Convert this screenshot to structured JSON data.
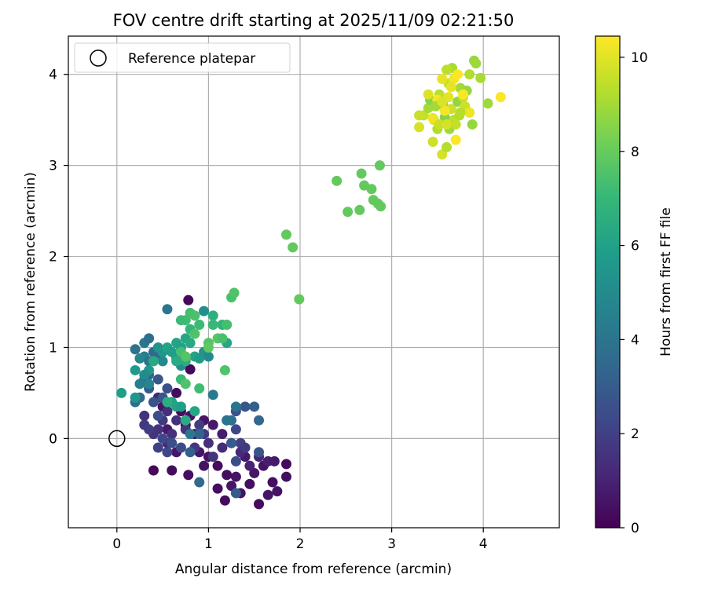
{
  "chart_data": {
    "type": "scatter",
    "title": "FOV centre drift starting at 2025/11/09 02:21:50",
    "xlabel": "Angular distance from reference (arcmin)",
    "ylabel": "Rotation from reference (arcmin)",
    "xlim": [
      -0.53,
      4.83
    ],
    "ylim": [
      -0.98,
      4.42
    ],
    "xticks": [
      0,
      1,
      2,
      3,
      4
    ],
    "yticks": [
      0,
      1,
      2,
      3,
      4
    ],
    "grid": true,
    "legend": {
      "position": "top-left",
      "entries": [
        {
          "label": "Reference platepar",
          "marker": "open-circle"
        }
      ]
    },
    "reference_point": {
      "x": 0,
      "y": 0
    },
    "colorbar": {
      "label": "Hours from first FF file",
      "range": [
        0,
        10.45
      ],
      "ticks": [
        0,
        2,
        4,
        6,
        8,
        10
      ],
      "colormap": "viridis"
    },
    "colors": {
      "viridis": [
        "#440154",
        "#482878",
        "#3e4989",
        "#31688e",
        "#26828e",
        "#1f9e89",
        "#35b779",
        "#6ece58",
        "#b5de2b",
        "#fde725"
      ]
    },
    "points": [
      [
        0.4,
        -0.35,
        0.2
      ],
      [
        0.6,
        -0.35,
        0.3
      ],
      [
        0.78,
        -0.4,
        0.4
      ],
      [
        0.95,
        -0.3,
        0.5
      ],
      [
        1.1,
        -0.55,
        0.4
      ],
      [
        1.18,
        -0.68,
        0.3
      ],
      [
        1.25,
        -0.52,
        0.6
      ],
      [
        1.35,
        -0.6,
        0.5
      ],
      [
        1.45,
        -0.5,
        0.4
      ],
      [
        1.55,
        -0.72,
        0.3
      ],
      [
        1.65,
        -0.62,
        0.6
      ],
      [
        1.75,
        -0.58,
        0.5
      ],
      [
        1.85,
        -0.42,
        0.4
      ],
      [
        1.85,
        -0.28,
        0.3
      ],
      [
        1.7,
        -0.48,
        0.4
      ],
      [
        1.6,
        -0.3,
        0.5
      ],
      [
        1.5,
        -0.38,
        0.6
      ],
      [
        1.4,
        -0.2,
        0.7
      ],
      [
        1.3,
        -0.42,
        0.5
      ],
      [
        1.2,
        -0.4,
        0.4
      ],
      [
        1.1,
        -0.3,
        0.3
      ],
      [
        1.0,
        -0.2,
        0.5
      ],
      [
        0.9,
        -0.15,
        0.6
      ],
      [
        0.85,
        0.05,
        0.5
      ],
      [
        0.75,
        0.15,
        0.3
      ],
      [
        0.65,
        -0.15,
        0.6
      ],
      [
        0.55,
        0.1,
        0.7
      ],
      [
        0.7,
        0.3,
        0.4
      ],
      [
        0.8,
        0.25,
        0.5
      ],
      [
        0.95,
        0.2,
        0.6
      ],
      [
        1.05,
        0.15,
        0.7
      ],
      [
        1.15,
        0.05,
        0.8
      ],
      [
        1.25,
        -0.05,
        1.0
      ],
      [
        1.35,
        -0.15,
        1.2
      ],
      [
        1.45,
        -0.3,
        1.0
      ],
      [
        1.65,
        -0.25,
        0.9
      ],
      [
        1.72,
        -0.25,
        0.7
      ],
      [
        1.55,
        -0.2,
        1.1
      ],
      [
        1.15,
        -0.1,
        1.3
      ],
      [
        1.0,
        -0.05,
        1.4
      ],
      [
        0.78,
        1.52,
        0.2
      ],
      [
        0.8,
        0.76,
        0.2
      ],
      [
        0.65,
        0.5,
        0.3
      ],
      [
        0.5,
        0.35,
        0.6
      ],
      [
        0.45,
        0.45,
        1.0
      ],
      [
        0.55,
        -0.05,
        1.2
      ],
      [
        0.6,
        0.05,
        1.4
      ],
      [
        0.65,
        0.2,
        1.5
      ],
      [
        0.75,
        0.1,
        1.6
      ],
      [
        0.85,
        -0.1,
        1.7
      ],
      [
        0.95,
        0.05,
        1.8
      ],
      [
        1.05,
        -0.2,
        1.6
      ],
      [
        0.9,
        0.15,
        1.9
      ],
      [
        0.45,
        0.1,
        1.5
      ],
      [
        0.4,
        0.05,
        1.6
      ],
      [
        0.5,
        0.2,
        1.7
      ],
      [
        0.55,
        0.3,
        1.4
      ],
      [
        0.3,
        0.15,
        1.8
      ],
      [
        0.35,
        0.1,
        1.9
      ],
      [
        0.3,
        0.25,
        1.5
      ],
      [
        0.45,
        -0.1,
        2.0
      ],
      [
        0.55,
        -0.15,
        2.2
      ],
      [
        0.7,
        -0.1,
        2.4
      ],
      [
        0.6,
        -0.05,
        2.6
      ],
      [
        0.5,
        0.0,
        2.3
      ],
      [
        0.45,
        0.25,
        2.5
      ],
      [
        0.4,
        0.4,
        2.7
      ],
      [
        0.5,
        0.45,
        2.9
      ],
      [
        0.55,
        0.55,
        2.6
      ],
      [
        0.35,
        0.55,
        3.0
      ],
      [
        0.3,
        0.65,
        3.2
      ],
      [
        0.35,
        0.7,
        3.4
      ],
      [
        0.45,
        0.65,
        2.8
      ],
      [
        0.25,
        0.45,
        3.6
      ],
      [
        0.2,
        0.4,
        3.8
      ],
      [
        1.2,
        0.2,
        2.4
      ],
      [
        1.3,
        0.3,
        2.6
      ],
      [
        1.4,
        0.35,
        2.8
      ],
      [
        1.3,
        0.1,
        2.2
      ],
      [
        1.35,
        -0.05,
        2.0
      ],
      [
        1.4,
        -0.1,
        1.8
      ],
      [
        1.3,
        -0.25,
        2.5
      ],
      [
        1.3,
        -0.6,
        3.0
      ],
      [
        1.55,
        -0.15,
        2.7
      ],
      [
        0.9,
        0.05,
        3.3
      ],
      [
        0.8,
        -0.15,
        3.1
      ],
      [
        0.9,
        -0.48,
        3.6
      ],
      [
        1.25,
        -0.05,
        3.0
      ],
      [
        1.5,
        0.35,
        3.2
      ],
      [
        1.55,
        0.2,
        3.5
      ],
      [
        1.25,
        0.2,
        3.8
      ],
      [
        1.2,
        0.2,
        4.0
      ],
      [
        1.3,
        0.35,
        4.0
      ],
      [
        1.05,
        0.48,
        4.3
      ],
      [
        0.8,
        0.05,
        4.2
      ],
      [
        0.2,
        0.98,
        4.0
      ],
      [
        0.3,
        1.05,
        4.2
      ],
      [
        0.35,
        1.1,
        3.8
      ],
      [
        0.4,
        0.95,
        3.6
      ],
      [
        0.3,
        0.9,
        4.5
      ],
      [
        0.25,
        0.88,
        4.8
      ],
      [
        0.35,
        0.85,
        4.0
      ],
      [
        0.45,
        0.9,
        3.5
      ],
      [
        0.55,
        1.42,
        4.1
      ],
      [
        0.65,
        0.88,
        5.0
      ],
      [
        0.7,
        0.8,
        5.2
      ],
      [
        0.5,
        0.85,
        4.9
      ],
      [
        0.45,
        1.0,
        5.4
      ],
      [
        0.35,
        0.75,
        5.6
      ],
      [
        0.3,
        0.7,
        5.0
      ],
      [
        0.35,
        0.6,
        4.8
      ],
      [
        0.25,
        0.6,
        4.5
      ],
      [
        0.2,
        0.45,
        5.5
      ],
      [
        0.05,
        0.5,
        5.8
      ],
      [
        0.2,
        0.75,
        5.7
      ],
      [
        0.65,
        0.35,
        5.9
      ],
      [
        0.6,
        0.4,
        6.0
      ],
      [
        0.7,
        0.35,
        5.8
      ],
      [
        0.85,
        0.3,
        6.2
      ],
      [
        0.75,
        0.2,
        6.4
      ],
      [
        0.55,
        0.4,
        6.5
      ],
      [
        0.4,
        0.85,
        6.3
      ],
      [
        0.5,
        0.95,
        5.5
      ],
      [
        0.55,
        1.0,
        6.0
      ],
      [
        0.6,
        0.95,
        5.8
      ],
      [
        0.65,
        1.05,
        6.1
      ],
      [
        0.75,
        1.1,
        6.2
      ],
      [
        0.8,
        1.05,
        6.3
      ],
      [
        0.7,
        1.0,
        6.0
      ],
      [
        0.65,
        0.85,
        6.4
      ],
      [
        0.75,
        0.85,
        6.5
      ],
      [
        0.85,
        0.9,
        6.1
      ],
      [
        0.9,
        0.88,
        5.7
      ],
      [
        0.95,
        0.95,
        5.4
      ],
      [
        1.0,
        0.9,
        5.0
      ],
      [
        0.95,
        1.4,
        5.2
      ],
      [
        1.05,
        1.35,
        6.6
      ],
      [
        1.15,
        1.25,
        6.8
      ],
      [
        1.2,
        1.05,
        6.2
      ],
      [
        1.05,
        1.25,
        7.0
      ],
      [
        0.9,
        1.25,
        7.1
      ],
      [
        0.8,
        1.2,
        6.9
      ],
      [
        0.75,
        1.3,
        7.2
      ],
      [
        0.8,
        1.38,
        7.3
      ],
      [
        0.85,
        1.35,
        7.4
      ],
      [
        0.85,
        1.15,
        7.5
      ],
      [
        1.0,
        1.05,
        7.6
      ],
      [
        1.1,
        1.1,
        7.7
      ],
      [
        1.2,
        1.25,
        7.3
      ],
      [
        1.25,
        1.55,
        7.4
      ],
      [
        1.28,
        1.6,
        7.5
      ],
      [
        1.18,
        0.75,
        7.5
      ],
      [
        1.15,
        1.1,
        7.4
      ],
      [
        0.9,
        0.55,
        7.2
      ],
      [
        0.7,
        0.65,
        7.0
      ],
      [
        0.7,
        0.95,
        7.3
      ],
      [
        0.75,
        0.9,
        7.6
      ],
      [
        1.0,
        1.0,
        7.8
      ],
      [
        0.75,
        0.6,
        7.5
      ],
      [
        0.7,
        1.3,
        7.1
      ],
      [
        1.85,
        2.24,
        7.9
      ],
      [
        1.92,
        2.1,
        7.9
      ],
      [
        1.99,
        1.53,
        7.9
      ],
      [
        2.4,
        2.83,
        7.9
      ],
      [
        2.52,
        2.49,
        7.9
      ],
      [
        2.65,
        2.51,
        7.9
      ],
      [
        2.67,
        2.91,
        7.9
      ],
      [
        2.7,
        2.78,
        7.9
      ],
      [
        2.78,
        2.74,
        7.9
      ],
      [
        2.8,
        2.62,
        7.9
      ],
      [
        2.85,
        2.58,
        7.9
      ],
      [
        2.88,
        2.55,
        7.9
      ],
      [
        2.87,
        3.0,
        7.9
      ],
      [
        3.3,
        3.42,
        9.8
      ],
      [
        3.35,
        3.55,
        9.5
      ],
      [
        3.4,
        3.63,
        9.0
      ],
      [
        3.42,
        3.72,
        8.5
      ],
      [
        3.45,
        3.26,
        9.7
      ],
      [
        3.5,
        3.4,
        9.2
      ],
      [
        3.52,
        3.78,
        9.4
      ],
      [
        3.55,
        3.12,
        9.8
      ],
      [
        3.56,
        3.67,
        8.8
      ],
      [
        3.58,
        3.53,
        8.5
      ],
      [
        3.6,
        3.2,
        9.3
      ],
      [
        3.62,
        3.9,
        9.6
      ],
      [
        3.63,
        3.4,
        8.9
      ],
      [
        3.65,
        3.62,
        9.7
      ],
      [
        3.66,
        4.07,
        9.1
      ],
      [
        3.68,
        3.5,
        9.4
      ],
      [
        3.7,
        3.28,
        10.4
      ],
      [
        3.72,
        3.7,
        8.7
      ],
      [
        3.74,
        3.55,
        9.2
      ],
      [
        3.75,
        3.85,
        9.0
      ],
      [
        3.78,
        3.75,
        9.5
      ],
      [
        3.8,
        3.65,
        9.7
      ],
      [
        3.82,
        3.82,
        8.8
      ],
      [
        3.85,
        3.58,
        10.2
      ],
      [
        3.88,
        3.45,
        8.8
      ],
      [
        3.9,
        4.15,
        8.8
      ],
      [
        3.92,
        4.12,
        8.9
      ],
      [
        3.97,
        3.96,
        9.1
      ],
      [
        4.05,
        3.68,
        8.9
      ],
      [
        4.19,
        3.75,
        10.4
      ],
      [
        3.46,
        3.5,
        9.9
      ],
      [
        3.55,
        3.95,
        10.1
      ],
      [
        3.62,
        3.75,
        10.0
      ],
      [
        3.68,
        3.95,
        10.3
      ],
      [
        3.72,
        4.0,
        10.4
      ],
      [
        3.78,
        3.78,
        10.4
      ],
      [
        3.5,
        3.72,
        10.3
      ],
      [
        3.45,
        3.52,
        10.2
      ],
      [
        3.58,
        3.6,
        10.3
      ],
      [
        3.65,
        3.86,
        10.1
      ],
      [
        3.4,
        3.78,
        9.9
      ],
      [
        3.52,
        3.45,
        9.6
      ],
      [
        3.6,
        3.45,
        9.8
      ],
      [
        3.7,
        3.45,
        9.5
      ],
      [
        3.75,
        3.58,
        9.3
      ],
      [
        3.85,
        4.0,
        9.2
      ],
      [
        3.6,
        4.05,
        9.4
      ],
      [
        3.48,
        3.65,
        9.0
      ],
      [
        3.3,
        3.55,
        9.6
      ],
      [
        3.55,
        3.7,
        9.9
      ]
    ]
  }
}
